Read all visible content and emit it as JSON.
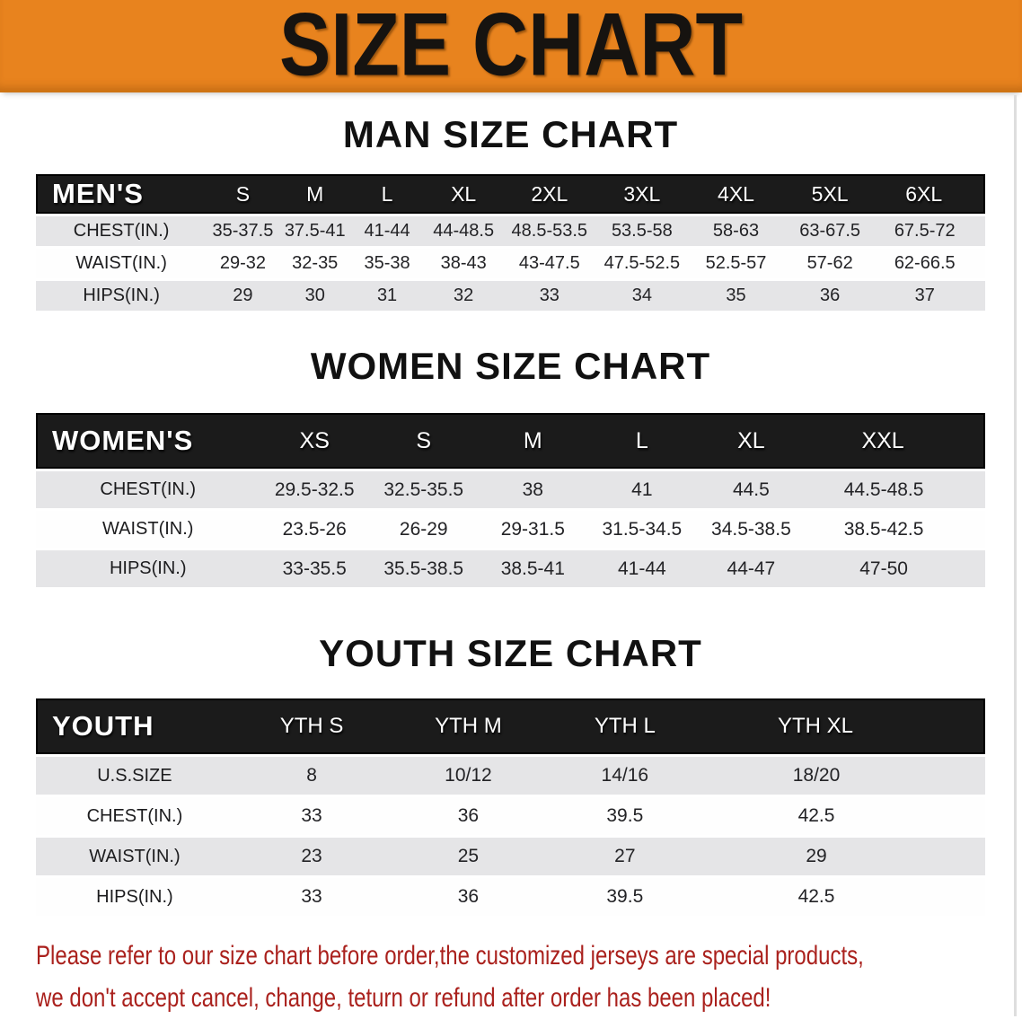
{
  "banner": {
    "title": "SIZE CHART",
    "bg_color": "#E8831E",
    "text_color": "#161310"
  },
  "sections": [
    {
      "id": "men",
      "heading": "MAN SIZE CHART",
      "table": {
        "header": [
          "MEN'S",
          "S",
          "M",
          "L",
          "XL",
          "2XL",
          "3XL",
          "4XL",
          "5XL",
          "6XL"
        ],
        "rows": [
          {
            "label": "CHEST(IN.)",
            "values": [
              "35-37.5",
              "37.5-41",
              "41-44",
              "44-48.5",
              "48.5-53.5",
              "53.5-58",
              "58-63",
              "63-67.5",
              "67.5-72"
            ]
          },
          {
            "label": "WAIST(IN.)",
            "values": [
              "29-32",
              "32-35",
              "35-38",
              "38-43",
              "43-47.5",
              "47.5-52.5",
              "52.5-57",
              "57-62",
              "62-66.5"
            ]
          },
          {
            "label": "HIPS(IN.)",
            "values": [
              "29",
              "30",
              "31",
              "32",
              "33",
              "34",
              "35",
              "36",
              "37"
            ]
          }
        ]
      }
    },
    {
      "id": "women",
      "heading": "WOMEN SIZE CHART",
      "table": {
        "header": [
          "WOMEN'S",
          "XS",
          "S",
          "M",
          "L",
          "XL",
          "XXL"
        ],
        "rows": [
          {
            "label": "CHEST(IN.)",
            "values": [
              "29.5-32.5",
              "32.5-35.5",
              "38",
              "41",
              "44.5",
              "44.5-48.5"
            ]
          },
          {
            "label": "WAIST(IN.)",
            "values": [
              "23.5-26",
              "26-29",
              "29-31.5",
              "31.5-34.5",
              "34.5-38.5",
              "38.5-42.5"
            ]
          },
          {
            "label": "HIPS(IN.)",
            "values": [
              "33-35.5",
              "35.5-38.5",
              "38.5-41",
              "41-44",
              "44-47",
              "47-50"
            ]
          }
        ]
      }
    },
    {
      "id": "youth",
      "heading": "YOUTH SIZE CHART",
      "table": {
        "header": [
          "YOUTH",
          "YTH S",
          "YTH M",
          "YTH L",
          "YTH XL"
        ],
        "rows": [
          {
            "label": "U.S.SIZE",
            "values": [
              "8",
              "10/12",
              "14/16",
              "18/20"
            ]
          },
          {
            "label": "CHEST(IN.)",
            "values": [
              "33",
              "36",
              "39.5",
              "42.5"
            ]
          },
          {
            "label": "WAIST(IN.)",
            "values": [
              "23",
              "25",
              "27",
              "29"
            ]
          },
          {
            "label": "HIPS(IN.)",
            "values": [
              "33",
              "36",
              "39.5",
              "42.5"
            ]
          }
        ]
      }
    }
  ],
  "disclaimer": {
    "line1": "Please refer to our size chart before order,the customized jerseys are special products,",
    "line2": "we don't accept cancel, change, teturn or refund after order has been placed!",
    "text_color": "#AA211D"
  }
}
